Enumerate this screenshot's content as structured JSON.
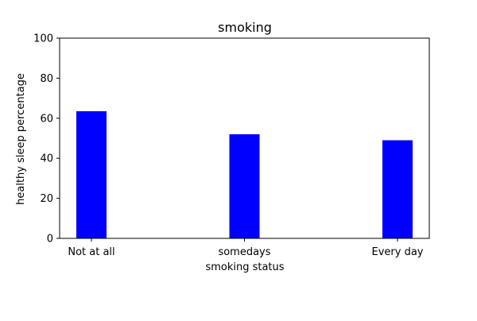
{
  "chart_data": {
    "type": "bar",
    "title": "smoking",
    "xlabel": "smoking status",
    "ylabel": "healthy sleep percentage",
    "categories": [
      "Not at all",
      "somedays",
      "Every day"
    ],
    "values": [
      63.5,
      52,
      49
    ],
    "ylim": [
      0,
      100
    ],
    "yticks": [
      0,
      20,
      40,
      60,
      80,
      100
    ],
    "ytick_labels": [
      "0",
      "20",
      "40",
      "60",
      "80",
      "100"
    ],
    "bar_color": "#0000ff",
    "grid": false,
    "legend": "none"
  }
}
